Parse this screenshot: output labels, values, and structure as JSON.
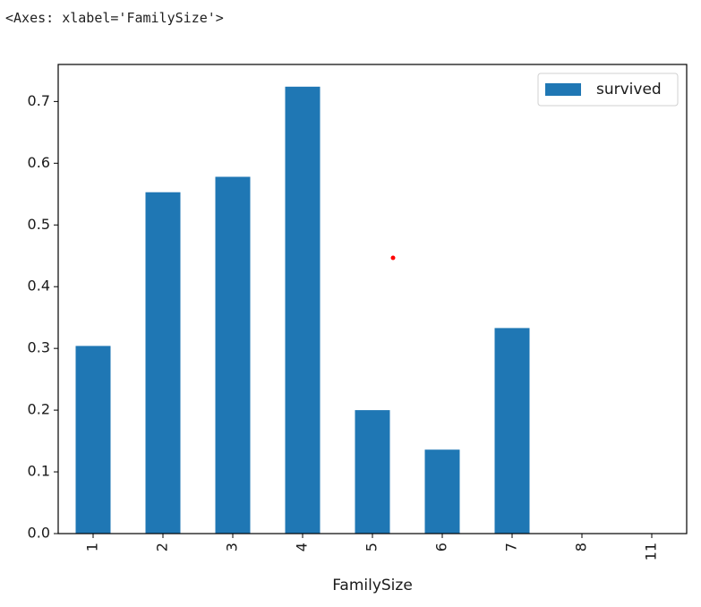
{
  "output": {
    "repr_text": "<Axes: xlabel='FamilySize'>"
  },
  "chart_data": {
    "type": "bar",
    "categories": [
      "1",
      "2",
      "3",
      "4",
      "5",
      "6",
      "7",
      "8",
      "11"
    ],
    "series": [
      {
        "name": "survived",
        "color": "#1f77b4",
        "values": [
          0.304,
          0.553,
          0.578,
          0.724,
          0.2,
          0.136,
          0.333,
          0.0,
          0.0
        ]
      }
    ],
    "xlabel": "FamilySize",
    "ylabel": "",
    "ylim": [
      0,
      0.76
    ],
    "yticks": [
      "0.0",
      "0.1",
      "0.2",
      "0.3",
      "0.4",
      "0.5",
      "0.6",
      "0.7"
    ],
    "legend": "top-right",
    "grid": false,
    "marker_color": "#ff0000"
  }
}
